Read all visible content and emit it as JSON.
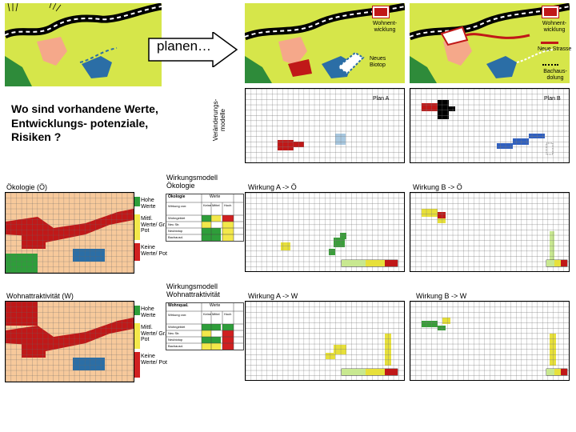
{
  "header": {
    "planen": "planen…",
    "question": "Wo sind vorhandene Werte, Entwicklungs- potenziale, Risiken ?",
    "veraenderungsmodelle": "Veränderungs- modelle"
  },
  "landscape_labels": {
    "wohnentwicklung_a": "Wohnent- wicklung",
    "neues_biotop": "Neues Biotop",
    "wohnentwicklung_b": "Wohnent- wicklung",
    "neue_strasse": "Neue Strasse",
    "bachausdolung": "Bachaus- dolung"
  },
  "plans": {
    "plan_a": "Plan A",
    "plan_b": "Plan B"
  },
  "oekologie": {
    "title": "Ökologie (Ö)",
    "legend": [
      {
        "label": "Hohe Werte",
        "color": "#2e9e3a"
      },
      {
        "label": "Mittl. Werte/ Gr. Pot",
        "color": "#f3e84a"
      },
      {
        "label": "Keine Werte/ Pot",
        "color": "#d02020"
      }
    ],
    "model_title": "Wirkungsmodell Ökologie",
    "table_header": "Werte",
    "table_title": "Ökologie",
    "rows": [
      "Wirkung von:",
      "Wohngebiet",
      "Neu Str.",
      "Neubiotop",
      "Bachausd."
    ],
    "cols": [
      "Keine",
      "Mittel",
      "Hoch"
    ],
    "wirkung_a": "Wirkung A -> Ö",
    "wirkung_b": "Wirkung B -> Ö"
  },
  "wohn": {
    "title": "Wohnattraktivität (W)",
    "legend": [
      {
        "label": "Hohe Werte",
        "color": "#2e9e3a"
      },
      {
        "label": "Mittl. Werte/ Gr. Pot",
        "color": "#f3e84a"
      },
      {
        "label": "Keine Werte/ Pot",
        "color": "#d02020"
      }
    ],
    "model_title": "Wirkungsmodell Wohnattraktivität",
    "table_header": "Werte",
    "table_title": "Wohnqual.",
    "rows": [
      "Wirkung von:",
      "Wohngebiet",
      "Neu Str.",
      "Neubiotop",
      "Bachausd."
    ],
    "cols": [
      "Keine",
      "Mittel",
      "Hoch"
    ],
    "wirkung_a": "Wirkung A -> W",
    "wirkung_b": "Wirkung B -> W"
  },
  "colors": {
    "landscape": "#d6e64a",
    "mountain": "#2e8b3a",
    "town": "#f5a88a",
    "lake": "#2b6ea6",
    "map_bg": "#f7c99b",
    "grid": "#555555",
    "red": "#c01818",
    "yellow": "#e7e03a",
    "green": "#3a9e3a",
    "blue": "#3060c0"
  }
}
